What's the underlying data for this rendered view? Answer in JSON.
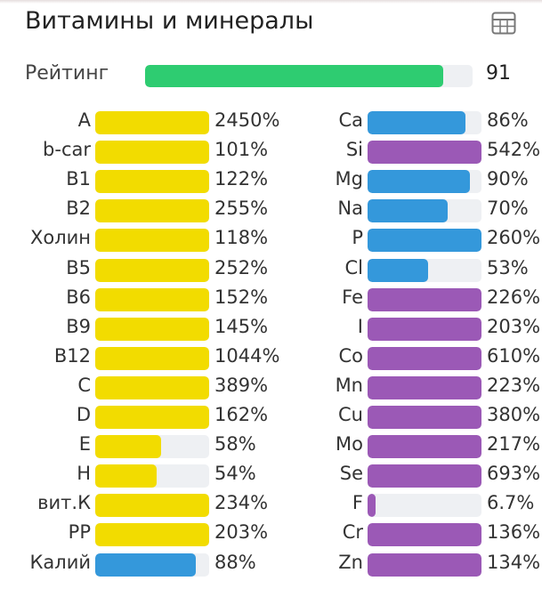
{
  "header": {
    "title": "Витамины и минералы",
    "table_icon": "table-grid-icon"
  },
  "rating": {
    "label": "Рейтинг",
    "value": "91",
    "percent": 91,
    "color": "#2ecc71"
  },
  "colors": {
    "yellow": "#f2dc00",
    "blue": "#3498db",
    "purple": "#9b59b6",
    "track": "#eef0f3"
  },
  "left": [
    {
      "name": "A",
      "value": "2450%",
      "pct": 2450,
      "color": "yellow"
    },
    {
      "name": "b-car",
      "value": "101%",
      "pct": 101,
      "color": "yellow"
    },
    {
      "name": "B1",
      "value": "122%",
      "pct": 122,
      "color": "yellow"
    },
    {
      "name": "B2",
      "value": "255%",
      "pct": 255,
      "color": "yellow"
    },
    {
      "name": "Холин",
      "value": "118%",
      "pct": 118,
      "color": "yellow"
    },
    {
      "name": "B5",
      "value": "252%",
      "pct": 252,
      "color": "yellow"
    },
    {
      "name": "B6",
      "value": "152%",
      "pct": 152,
      "color": "yellow"
    },
    {
      "name": "B9",
      "value": "145%",
      "pct": 145,
      "color": "yellow"
    },
    {
      "name": "B12",
      "value": "1044%",
      "pct": 1044,
      "color": "yellow"
    },
    {
      "name": "C",
      "value": "389%",
      "pct": 389,
      "color": "yellow"
    },
    {
      "name": "D",
      "value": "162%",
      "pct": 162,
      "color": "yellow"
    },
    {
      "name": "E",
      "value": "58%",
      "pct": 58,
      "color": "yellow"
    },
    {
      "name": "H",
      "value": "54%",
      "pct": 54,
      "color": "yellow"
    },
    {
      "name": "вит.К",
      "value": "234%",
      "pct": 234,
      "color": "yellow"
    },
    {
      "name": "PP",
      "value": "203%",
      "pct": 203,
      "color": "yellow"
    },
    {
      "name": "Калий",
      "value": "88%",
      "pct": 88,
      "color": "blue"
    }
  ],
  "right": [
    {
      "name": "Ca",
      "value": "86%",
      "pct": 86,
      "color": "blue"
    },
    {
      "name": "Si",
      "value": "542%",
      "pct": 542,
      "color": "purple"
    },
    {
      "name": "Mg",
      "value": "90%",
      "pct": 90,
      "color": "blue"
    },
    {
      "name": "Na",
      "value": "70%",
      "pct": 70,
      "color": "blue"
    },
    {
      "name": "P",
      "value": "260%",
      "pct": 260,
      "color": "blue"
    },
    {
      "name": "Cl",
      "value": "53%",
      "pct": 53,
      "color": "blue"
    },
    {
      "name": "Fe",
      "value": "226%",
      "pct": 226,
      "color": "purple"
    },
    {
      "name": "I",
      "value": "203%",
      "pct": 203,
      "color": "purple"
    },
    {
      "name": "Co",
      "value": "610%",
      "pct": 610,
      "color": "purple"
    },
    {
      "name": "Mn",
      "value": "223%",
      "pct": 223,
      "color": "purple"
    },
    {
      "name": "Cu",
      "value": "380%",
      "pct": 380,
      "color": "purple"
    },
    {
      "name": "Mo",
      "value": "217%",
      "pct": 217,
      "color": "purple"
    },
    {
      "name": "Se",
      "value": "693%",
      "pct": 693,
      "color": "purple"
    },
    {
      "name": "F",
      "value": "6.7%",
      "pct": 6.7,
      "color": "purple"
    },
    {
      "name": "Cr",
      "value": "136%",
      "pct": 136,
      "color": "purple"
    },
    {
      "name": "Zn",
      "value": "134%",
      "pct": 134,
      "color": "purple"
    }
  ]
}
